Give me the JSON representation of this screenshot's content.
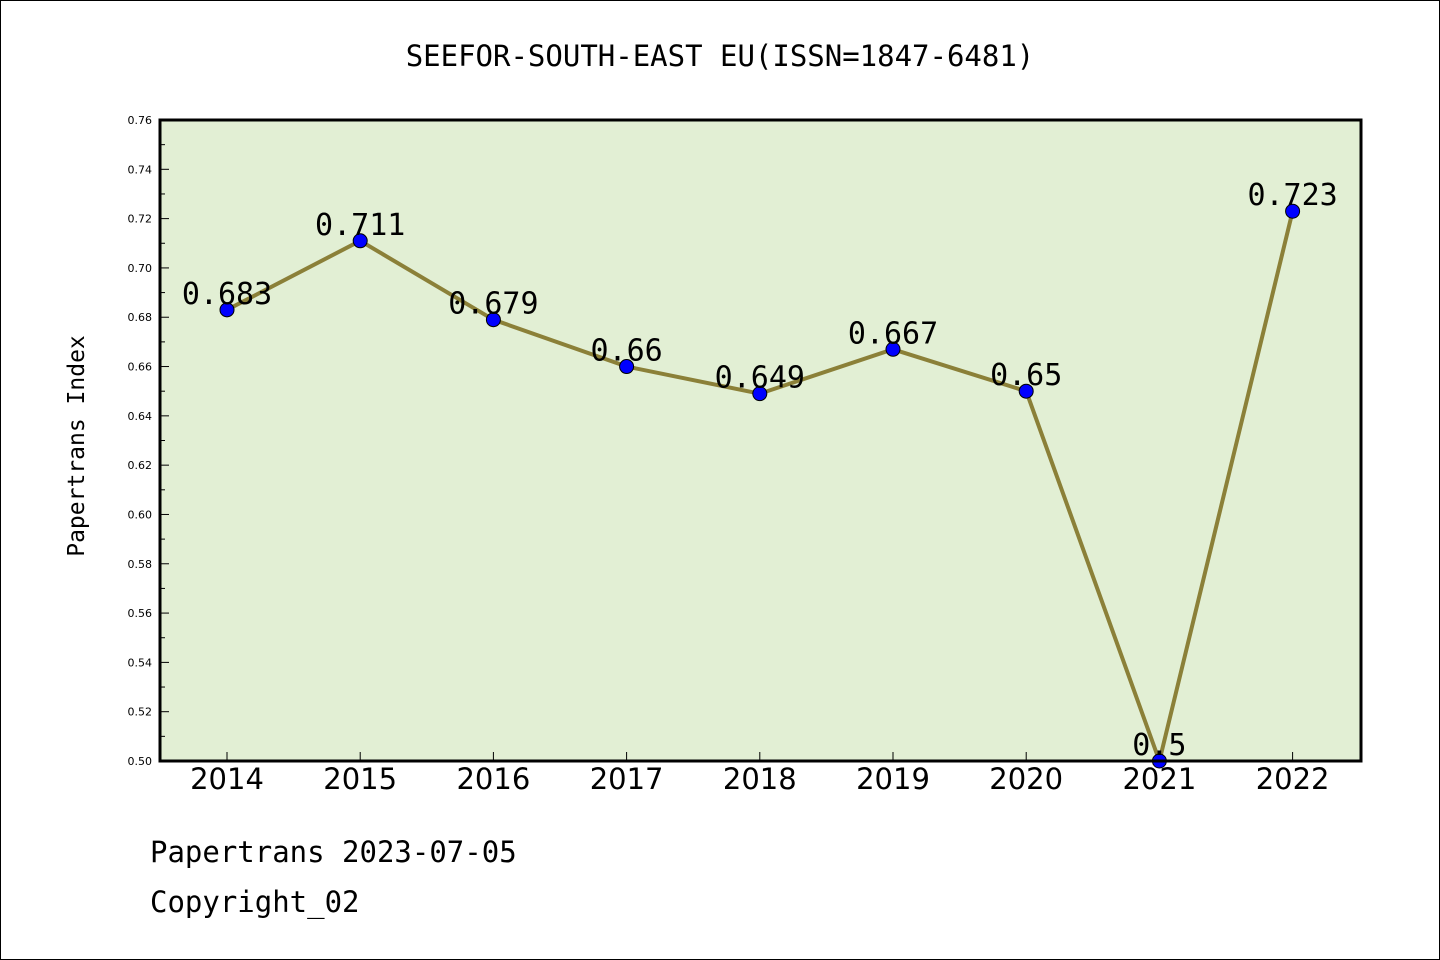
{
  "chart_data": {
    "type": "line",
    "title": "SEEFOR-SOUTH-EAST EU(ISSN=1847-6481)",
    "xlabel": "",
    "ylabel": "Papertrans Index",
    "categories": [
      "2014",
      "2015",
      "2016",
      "2017",
      "2018",
      "2019",
      "2020",
      "2021",
      "2022"
    ],
    "series": [
      {
        "values": [
          0.683,
          0.711,
          0.679,
          0.66,
          0.649,
          0.667,
          0.65,
          0.5,
          0.723
        ],
        "data_labels": [
          "0.683",
          "0.711",
          "0.679",
          "0.66",
          "0.649",
          "0.667",
          "0.65",
          "0.5",
          "0.723"
        ]
      }
    ],
    "ylim": [
      0.5,
      0.76
    ],
    "yticks": [
      "0.50",
      "0.52",
      "0.54",
      "0.56",
      "0.58",
      "0.60",
      "0.62",
      "0.64",
      "0.66",
      "0.68",
      "0.70",
      "0.72",
      "0.74",
      "0.76"
    ],
    "grid": false,
    "legend": "none",
    "colors": {
      "plot_background": "#e2efd4",
      "line": "#8b8038",
      "marker": "#0000ff"
    }
  },
  "footer": {
    "line1": "Papertrans 2023-07-05",
    "line2": "Copyright_02"
  }
}
